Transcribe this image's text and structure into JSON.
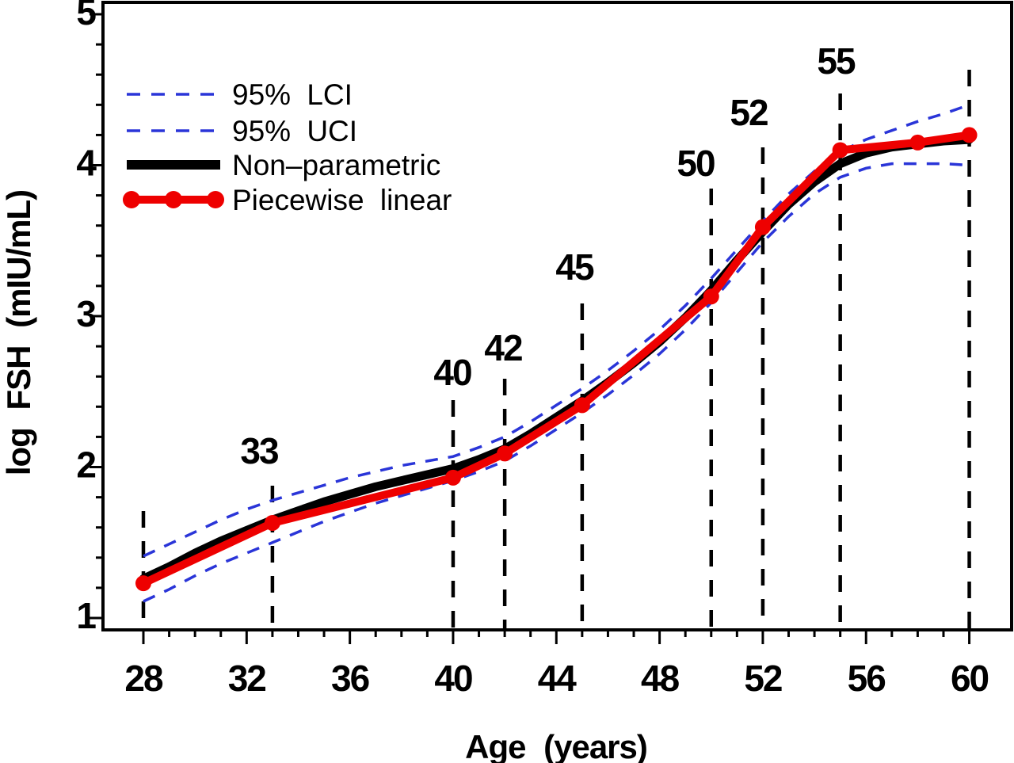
{
  "figure": {
    "background": "#ffffff",
    "colors": {
      "axis": "#000000",
      "ci": "#2a35d8",
      "nonparametric": "#000000",
      "piecewise": "#ee0000"
    },
    "legend": [
      {
        "label": "95% LCI",
        "swatch": "dashed-line",
        "color": "#2a35d8"
      },
      {
        "label": "95% UCI",
        "swatch": "dashed-line",
        "color": "#2a35d8"
      },
      {
        "label": "Non–parametric",
        "swatch": "thick-line",
        "color": "#000000"
      },
      {
        "label": "Piecewise linear",
        "swatch": "line-with-dots",
        "color": "#ee0000"
      }
    ]
  },
  "chart_data": {
    "type": "line",
    "title": "",
    "xlabel": "Age (years)",
    "ylabel": "log FSH (mIU/mL)",
    "xlim": [
      26.4,
      61.6
    ],
    "ylim": [
      0.92,
      5.08
    ],
    "grid": false,
    "legend_position": "top-left",
    "x_major_ticks": [
      28,
      32,
      36,
      40,
      44,
      48,
      52,
      56,
      60
    ],
    "x_minor_tick_step": 1,
    "y_major_ticks": [
      1,
      2,
      3,
      4,
      5
    ],
    "y_minor_tick_step": 0.2,
    "series": [
      {
        "name": "95% LCI",
        "style": "dashed",
        "color": "#2a35d8",
        "x": [
          28,
          29,
          30,
          31,
          32,
          33,
          34,
          35,
          36,
          37,
          38,
          39,
          40,
          41,
          42,
          43,
          44,
          45,
          46,
          47,
          48,
          49,
          50,
          51,
          52,
          53,
          54,
          55,
          56,
          57,
          58,
          59,
          60
        ],
        "y": [
          1.11,
          1.19,
          1.28,
          1.36,
          1.43,
          1.5,
          1.57,
          1.64,
          1.7,
          1.76,
          1.81,
          1.86,
          1.91,
          1.97,
          2.04,
          2.14,
          2.25,
          2.36,
          2.48,
          2.61,
          2.75,
          2.91,
          3.09,
          3.29,
          3.49,
          3.66,
          3.81,
          3.92,
          3.98,
          4.01,
          4.01,
          4.01,
          4.0
        ]
      },
      {
        "name": "95% UCI",
        "style": "dashed",
        "color": "#2a35d8",
        "x": [
          28,
          29,
          30,
          31,
          32,
          33,
          34,
          35,
          36,
          37,
          38,
          39,
          40,
          41,
          42,
          43,
          44,
          45,
          46,
          47,
          48,
          49,
          50,
          51,
          52,
          53,
          54,
          55,
          56,
          57,
          58,
          59,
          60
        ],
        "y": [
          1.41,
          1.49,
          1.57,
          1.65,
          1.72,
          1.78,
          1.83,
          1.88,
          1.93,
          1.97,
          2.01,
          2.04,
          2.07,
          2.13,
          2.2,
          2.3,
          2.41,
          2.52,
          2.64,
          2.77,
          2.91,
          3.07,
          3.25,
          3.44,
          3.63,
          3.81,
          3.96,
          4.09,
          4.17,
          4.23,
          4.29,
          4.34,
          4.4
        ]
      },
      {
        "name": "Non–parametric",
        "style": "solid-thick",
        "color": "#000000",
        "x": [
          28,
          29,
          30,
          31,
          32,
          33,
          34,
          35,
          36,
          37,
          38,
          39,
          40,
          41,
          42,
          43,
          44,
          45,
          46,
          47,
          48,
          49,
          50,
          51,
          52,
          53,
          54,
          55,
          56,
          57,
          58,
          59,
          60
        ],
        "y": [
          1.26,
          1.34,
          1.43,
          1.51,
          1.58,
          1.65,
          1.71,
          1.77,
          1.82,
          1.87,
          1.91,
          1.95,
          1.99,
          2.05,
          2.12,
          2.22,
          2.33,
          2.44,
          2.56,
          2.69,
          2.83,
          2.99,
          3.17,
          3.37,
          3.56,
          3.74,
          3.89,
          4.01,
          4.08,
          4.12,
          4.14,
          4.16,
          4.17
        ]
      },
      {
        "name": "Piecewise linear",
        "style": "solid-markers",
        "color": "#ee0000",
        "x": [
          28,
          33,
          40,
          42,
          45,
          50,
          52,
          55,
          58,
          60
        ],
        "y": [
          1.23,
          1.63,
          1.93,
          2.09,
          2.41,
          3.13,
          3.59,
          4.1,
          4.15,
          4.2
        ]
      }
    ],
    "breakpoint_vlines": [
      {
        "age": 28,
        "label": ""
      },
      {
        "age": 33,
        "label": "33"
      },
      {
        "age": 40,
        "label": "40"
      },
      {
        "age": 42,
        "label": "42"
      },
      {
        "age": 45,
        "label": "45"
      },
      {
        "age": 50,
        "label": "50"
      },
      {
        "age": 52,
        "label": "52"
      },
      {
        "age": 55,
        "label": "55"
      },
      {
        "age": 60,
        "label": ""
      }
    ]
  }
}
